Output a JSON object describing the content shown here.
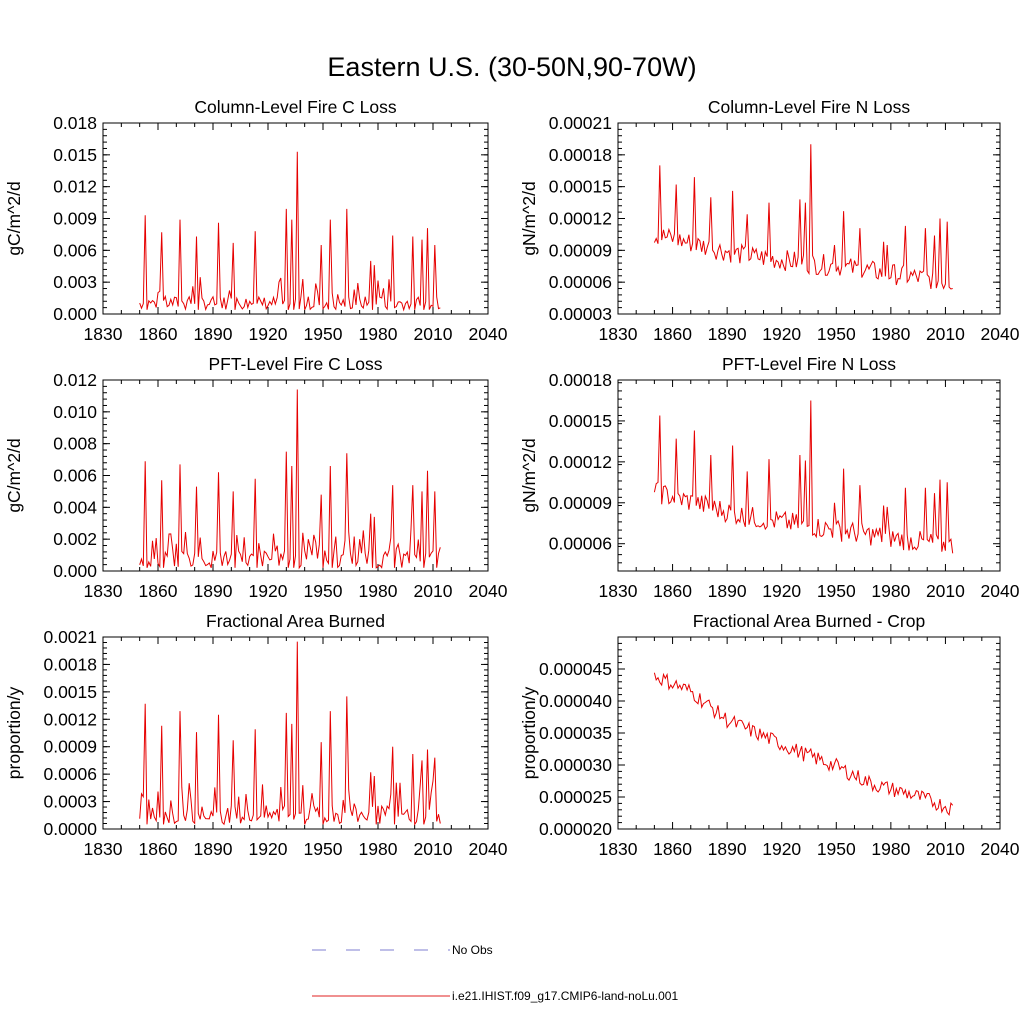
{
  "figure": {
    "title": "Eastern U.S. (30-50N,90-70W)"
  },
  "legend": {
    "entries": [
      {
        "label": "No Obs",
        "color": "#7f7fd0",
        "style": "dashed"
      },
      {
        "label": "i.e21.IHIST.f09_g17.CMIP6-land-noLu.001",
        "color": "#e02020",
        "style": "solid"
      }
    ]
  },
  "colors": {
    "series": "#e60000",
    "axis": "#000000"
  },
  "chart_data": [
    {
      "type": "line",
      "title": "Column-Level Fire C Loss",
      "ylabel": "gC/m^2/d",
      "xlim": [
        1830,
        2040
      ],
      "ylim": [
        0,
        0.018
      ],
      "xticks": [
        "1830",
        "1860",
        "1890",
        "1920",
        "1950",
        "1980",
        "2010",
        "2040"
      ],
      "yticks": [
        "0.000",
        "0.003",
        "0.006",
        "0.009",
        "0.012",
        "0.015",
        "0.018"
      ],
      "series": [
        {
          "label": "i.e21.IHIST.f09_g17.CMIP6-land-noLu.001",
          "start_year": 1850,
          "end_year": 2014,
          "peaks": [
            [
              1853,
              0.0093
            ],
            [
              1862,
              0.0077
            ],
            [
              1872,
              0.0089
            ],
            [
              1881,
              0.0073
            ],
            [
              1893,
              0.0086
            ],
            [
              1901,
              0.0067
            ],
            [
              1913,
              0.0078
            ],
            [
              1930,
              0.0099
            ],
            [
              1933,
              0.0089
            ],
            [
              1936,
              0.0153
            ],
            [
              1939,
              0.0033
            ],
            [
              1949,
              0.0065
            ],
            [
              1954,
              0.0089
            ],
            [
              1963,
              0.0099
            ],
            [
              1976,
              0.005
            ],
            [
              1978,
              0.0046
            ],
            [
              1988,
              0.0074
            ],
            [
              1999,
              0.0073
            ],
            [
              2004,
              0.007
            ],
            [
              2007,
              0.0081
            ],
            [
              2011,
              0.0065
            ]
          ],
          "base": 0.0012,
          "floor": 0.0004
        }
      ]
    },
    {
      "type": "line",
      "title": "Column-Level Fire N Loss",
      "ylabel": "gN/m^2/d",
      "xlim": [
        1830,
        2040
      ],
      "ylim": [
        3e-05,
        0.00021
      ],
      "xticks": [
        "1830",
        "1860",
        "1890",
        "1920",
        "1950",
        "1980",
        "2010",
        "2040"
      ],
      "yticks": [
        "0.00003",
        "0.00006",
        "0.00009",
        "0.00012",
        "0.00015",
        "0.00018",
        "0.00021"
      ],
      "series": [
        {
          "label": "i.e21.IHIST.f09_g17.CMIP6-land-noLu.001",
          "start_year": 1850,
          "end_year": 2014,
          "trend": [
            [
              1850,
              0.000105
            ],
            [
              1900,
              8.5e-05
            ],
            [
              1950,
              7.5e-05
            ],
            [
              2014,
              6e-05
            ]
          ],
          "peaks": [
            [
              1853,
              0.00017
            ],
            [
              1862,
              0.000152
            ],
            [
              1872,
              0.000159
            ],
            [
              1881,
              0.00014
            ],
            [
              1893,
              0.000146
            ],
            [
              1901,
              0.000124
            ],
            [
              1913,
              0.000135
            ],
            [
              1930,
              0.000138
            ],
            [
              1933,
              0.000135
            ],
            [
              1936,
              0.00019
            ],
            [
              1949,
              9.5e-05
            ],
            [
              1954,
              0.000127
            ],
            [
              1963,
              0.000111
            ],
            [
              1976,
              9.8e-05
            ],
            [
              1978,
              9.5e-05
            ],
            [
              1988,
              0.000113
            ],
            [
              1999,
              0.000111
            ],
            [
              2004,
              0.000104
            ],
            [
              2007,
              0.00012
            ],
            [
              2011,
              0.000117
            ]
          ],
          "amp": 1e-05,
          "end_value": 5.4e-05
        }
      ]
    },
    {
      "type": "line",
      "title": "PFT-Level Fire C Loss",
      "ylabel": "gC/m^2/d",
      "xlim": [
        1830,
        2040
      ],
      "ylim": [
        0,
        0.012
      ],
      "xticks": [
        "1830",
        "1860",
        "1890",
        "1920",
        "1950",
        "1980",
        "2010",
        "2040"
      ],
      "yticks": [
        "0.000",
        "0.002",
        "0.004",
        "0.006",
        "0.008",
        "0.010",
        "0.012"
      ],
      "series": [
        {
          "label": "i.e21.IHIST.f09_g17.CMIP6-land-noLu.001",
          "start_year": 1850,
          "end_year": 2014,
          "peaks": [
            [
              1853,
              0.0069
            ],
            [
              1862,
              0.0057
            ],
            [
              1872,
              0.0067
            ],
            [
              1881,
              0.0053
            ],
            [
              1893,
              0.0062
            ],
            [
              1901,
              0.005
            ],
            [
              1913,
              0.0058
            ],
            [
              1930,
              0.0075
            ],
            [
              1933,
              0.0066
            ],
            [
              1936,
              0.0114
            ],
            [
              1939,
              0.0024
            ],
            [
              1949,
              0.0048
            ],
            [
              1954,
              0.0066
            ],
            [
              1963,
              0.0074
            ],
            [
              1976,
              0.0036
            ],
            [
              1978,
              0.0034
            ],
            [
              1988,
              0.0054
            ],
            [
              1999,
              0.0054
            ],
            [
              2004,
              0.005
            ],
            [
              2007,
              0.0063
            ],
            [
              2011,
              0.005
            ]
          ],
          "base": 0.0009,
          "floor": 0.0002
        }
      ]
    },
    {
      "type": "line",
      "title": "PFT-Level Fire N Loss",
      "ylabel": "gN/m^2/d",
      "xlim": [
        1830,
        2040
      ],
      "ylim": [
        4e-05,
        0.00018
      ],
      "xticks": [
        "1830",
        "1860",
        "1890",
        "1920",
        "1950",
        "1980",
        "2010",
        "2040"
      ],
      "yticks": [
        "0.00006",
        "0.00009",
        "0.00012",
        "0.00015",
        "0.00018"
      ],
      "series": [
        {
          "label": "i.e21.IHIST.f09_g17.CMIP6-land-noLu.001",
          "start_year": 1850,
          "end_year": 2014,
          "trend": [
            [
              1850,
              9.8e-05
            ],
            [
              1900,
              8e-05
            ],
            [
              1950,
              7e-05
            ],
            [
              2014,
              5.8e-05
            ]
          ],
          "peaks": [
            [
              1853,
              0.000154
            ],
            [
              1862,
              0.000137
            ],
            [
              1872,
              0.000143
            ],
            [
              1881,
              0.000125
            ],
            [
              1893,
              0.000132
            ],
            [
              1901,
              0.000113
            ],
            [
              1913,
              0.000122
            ],
            [
              1930,
              0.000125
            ],
            [
              1933,
              0.000121
            ],
            [
              1936,
              0.000165
            ],
            [
              1949,
              9e-05
            ],
            [
              1954,
              0.000115
            ],
            [
              1963,
              0.000103
            ],
            [
              1976,
              8.8e-05
            ],
            [
              1978,
              8.7e-05
            ],
            [
              1988,
              0.000101
            ],
            [
              1999,
              0.000101
            ],
            [
              2004,
              9.7e-05
            ],
            [
              2007,
              0.000107
            ],
            [
              2011,
              0.000105
            ]
          ],
          "amp": 8e-06,
          "end_value": 5.3e-05
        }
      ]
    },
    {
      "type": "line",
      "title": "Fractional Area Burned",
      "ylabel": "proportion/y",
      "xlim": [
        1830,
        2040
      ],
      "ylim": [
        0,
        0.0021
      ],
      "xticks": [
        "1830",
        "1860",
        "1890",
        "1920",
        "1950",
        "1980",
        "2010",
        "2040"
      ],
      "yticks": [
        "0.0000",
        "0.0003",
        "0.0006",
        "0.0009",
        "0.0012",
        "0.0015",
        "0.0018",
        "0.0021"
      ],
      "series": [
        {
          "label": "i.e21.IHIST.f09_g17.CMIP6-land-noLu.001",
          "start_year": 1850,
          "end_year": 2014,
          "peaks": [
            [
              1853,
              0.00137
            ],
            [
              1862,
              0.00113
            ],
            [
              1872,
              0.00129
            ],
            [
              1881,
              0.00106
            ],
            [
              1893,
              0.00125
            ],
            [
              1901,
              0.00097
            ],
            [
              1913,
              0.00109
            ],
            [
              1930,
              0.00127
            ],
            [
              1933,
              0.00115
            ],
            [
              1936,
              0.00205
            ],
            [
              1939,
              0.00048
            ],
            [
              1949,
              0.00095
            ],
            [
              1954,
              0.00129
            ],
            [
              1963,
              0.00145
            ],
            [
              1976,
              0.00062
            ],
            [
              1978,
              0.00058
            ],
            [
              1988,
              0.0009
            ],
            [
              1999,
              0.00082
            ],
            [
              2004,
              0.00075
            ],
            [
              2007,
              0.00087
            ],
            [
              2011,
              0.00078
            ]
          ],
          "base": 0.00018,
          "floor": 5e-05
        }
      ]
    },
    {
      "type": "line",
      "title": "Fractional Area Burned - Crop",
      "ylabel": "proportion/y",
      "xlim": [
        1830,
        2040
      ],
      "ylim": [
        2e-05,
        5e-05
      ],
      "xticks": [
        "1830",
        "1860",
        "1890",
        "1920",
        "1950",
        "1980",
        "2010",
        "2040"
      ],
      "yticks": [
        "0.000020",
        "0.000025",
        "0.000030",
        "0.000035",
        "0.000040",
        "0.000045"
      ],
      "series": [
        {
          "label": "i.e21.IHIST.f09_g17.CMIP6-land-noLu.001",
          "start_year": 1850,
          "end_year": 2014,
          "trend": [
            [
              1850,
              4.4e-05
            ],
            [
              1870,
              4.15e-05
            ],
            [
              1890,
              3.7e-05
            ],
            [
              1910,
              3.45e-05
            ],
            [
              1930,
              3.2e-05
            ],
            [
              1950,
              2.98e-05
            ],
            [
              1970,
              2.7e-05
            ],
            [
              1990,
              2.55e-05
            ],
            [
              2014,
              2.32e-05
            ]
          ],
          "amp": 1.2e-06
        }
      ]
    }
  ]
}
